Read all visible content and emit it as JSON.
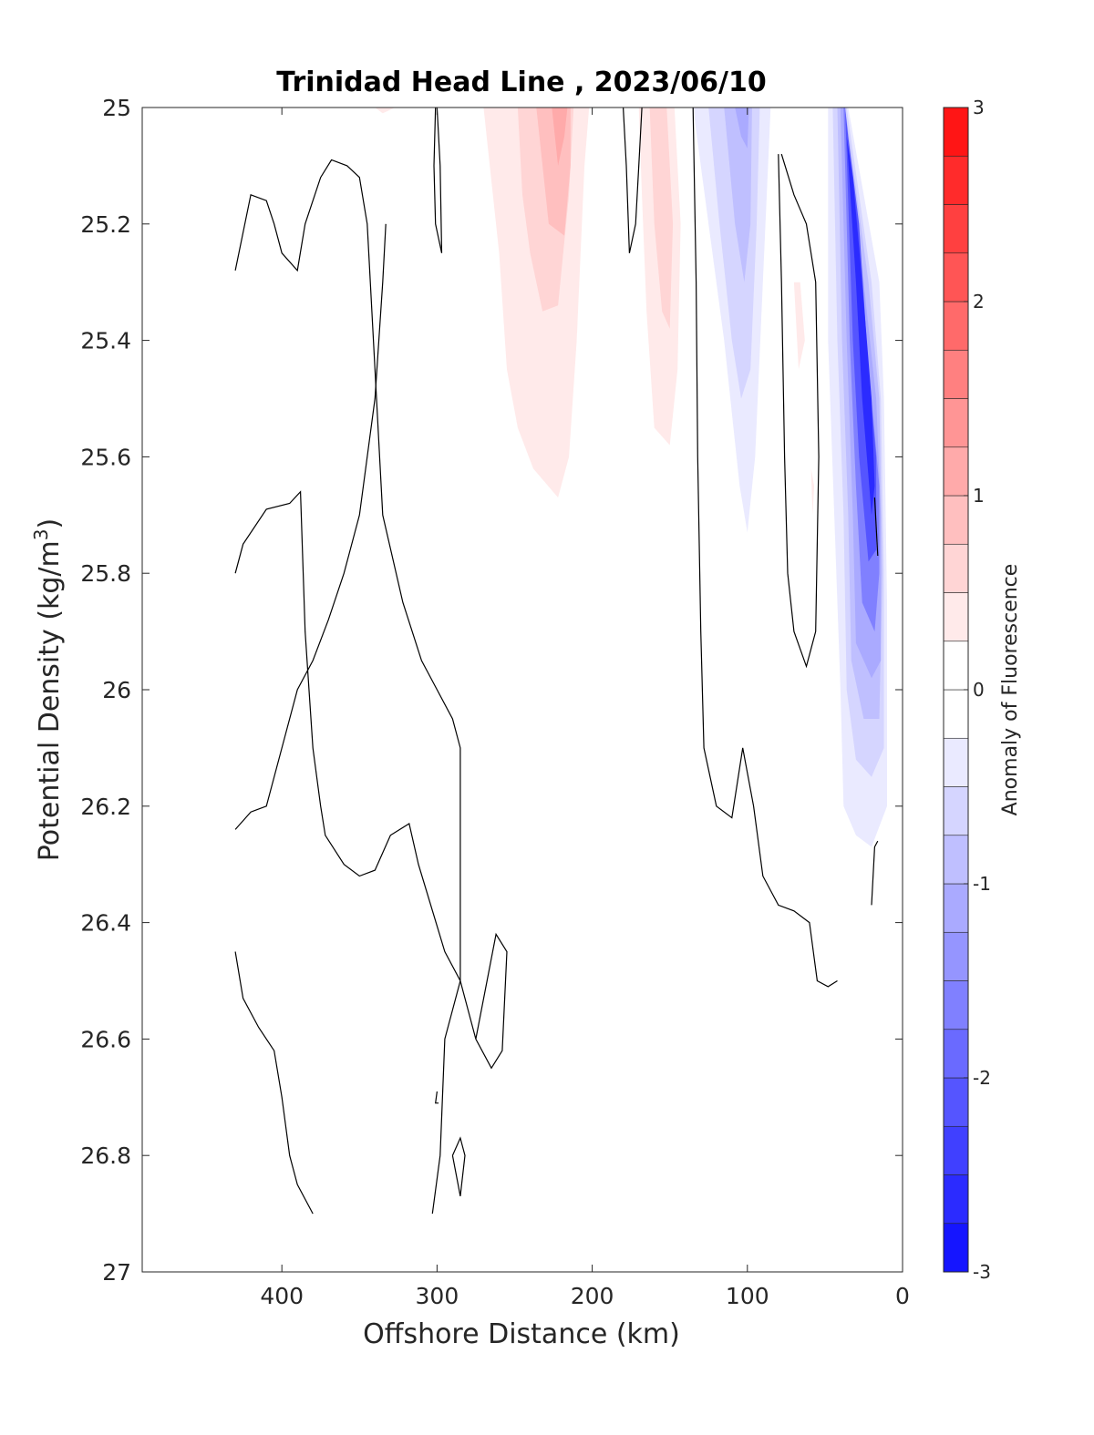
{
  "chart_data": {
    "type": "contour",
    "title": "Trinidad Head Line , 2023/06/10",
    "xlabel": "Offshore Distance (km)",
    "ylabel": "Potential Density (kg/m",
    "ylabel_superscript": "3",
    "ylabel_suffix": ")",
    "colorbar_label": "Anomaly of Fluorescence",
    "xlim": [
      490,
      0
    ],
    "ylim": [
      25,
      27
    ],
    "y_reversed": true,
    "x_reversed": true,
    "xticks": [
      400,
      300,
      200,
      100,
      0
    ],
    "xtick_labels": [
      "400",
      "300",
      "200",
      "100",
      "0"
    ],
    "yticks": [
      25,
      25.2,
      25.4,
      25.6,
      25.8,
      26,
      26.2,
      26.4,
      26.6,
      26.8,
      27
    ],
    "ytick_labels": [
      "25",
      "25.2",
      "25.4",
      "25.6",
      "25.8",
      "26",
      "26.2",
      "26.4",
      "26.6",
      "26.8",
      "27"
    ],
    "colorbar": {
      "limits": [
        -3,
        3
      ],
      "ticks": [
        3,
        2,
        1,
        0,
        -1,
        -2,
        -3
      ],
      "tick_labels": [
        "3",
        "2",
        "1",
        "0",
        "-1",
        "-2",
        "-3"
      ],
      "levels": [
        -3,
        -2.75,
        -2.5,
        -2.25,
        -2,
        -1.75,
        -1.5,
        -1.25,
        -1,
        -0.75,
        -0.5,
        -0.25,
        0,
        0.25,
        0.5,
        0.75,
        1,
        1.25,
        1.5,
        1.75,
        2,
        2.25,
        2.5,
        2.75,
        3
      ],
      "positive_color": "#ff0000",
      "negative_color": "#0000ff",
      "neutral_color": "#ffffff"
    },
    "filled_regions": [
      {
        "level": 0.25,
        "points": [
          [
            270,
            25
          ],
          [
            260,
            25.25
          ],
          [
            255,
            25.45
          ],
          [
            248,
            25.55
          ],
          [
            238,
            25.62
          ],
          [
            222,
            25.67
          ],
          [
            215,
            25.6
          ],
          [
            210,
            25.4
          ],
          [
            205,
            25.1
          ],
          [
            202,
            25
          ]
        ]
      },
      {
        "level": 0.5,
        "points": [
          [
            248,
            25
          ],
          [
            245,
            25.15
          ],
          [
            240,
            25.25
          ],
          [
            232,
            25.35
          ],
          [
            222,
            25.34
          ],
          [
            215,
            25.15
          ],
          [
            212,
            25
          ]
        ]
      },
      {
        "level": 0.75,
        "points": [
          [
            236,
            25
          ],
          [
            232,
            25.1
          ],
          [
            228,
            25.2
          ],
          [
            218,
            25.22
          ],
          [
            214,
            25.1
          ],
          [
            214,
            25
          ]
        ]
      },
      {
        "level": 1.0,
        "points": [
          [
            226,
            25
          ],
          [
            222,
            25.1
          ],
          [
            218,
            25.05
          ],
          [
            216,
            25
          ]
        ]
      },
      {
        "level": 0.25,
        "points": [
          [
            170,
            25
          ],
          [
            168,
            25.15
          ],
          [
            165,
            25.35
          ],
          [
            160,
            25.55
          ],
          [
            150,
            25.58
          ],
          [
            145,
            25.45
          ],
          [
            143,
            25.2
          ],
          [
            147,
            25
          ]
        ]
      },
      {
        "level": 0.5,
        "points": [
          [
            163,
            25
          ],
          [
            160,
            25.2
          ],
          [
            155,
            25.35
          ],
          [
            150,
            25.38
          ],
          [
            148,
            25.2
          ],
          [
            152,
            25
          ]
        ]
      },
      {
        "level": 0.25,
        "points": [
          [
            70,
            25.3
          ],
          [
            67,
            25.45
          ],
          [
            63,
            25.4
          ],
          [
            66,
            25.3
          ]
        ]
      },
      {
        "level": 0.25,
        "points": [
          [
            59,
            25.62
          ],
          [
            58,
            25.7
          ],
          [
            57,
            25.65
          ]
        ]
      },
      {
        "level": 0.25,
        "points": [
          [
            340,
            25
          ],
          [
            335,
            25.01
          ],
          [
            327,
            25
          ]
        ]
      },
      {
        "level": -0.25,
        "points": [
          [
            135,
            25
          ],
          [
            125,
            25.2
          ],
          [
            115,
            25.4
          ],
          [
            105,
            25.65
          ],
          [
            100,
            25.73
          ],
          [
            95,
            25.6
          ],
          [
            90,
            25.3
          ],
          [
            85,
            25
          ]
        ]
      },
      {
        "level": -0.5,
        "points": [
          [
            125,
            25
          ],
          [
            118,
            25.2
          ],
          [
            110,
            25.4
          ],
          [
            104,
            25.5
          ],
          [
            98,
            25.45
          ],
          [
            94,
            25.2
          ],
          [
            92,
            25
          ]
        ]
      },
      {
        "level": -0.75,
        "points": [
          [
            115,
            25
          ],
          [
            108,
            25.2
          ],
          [
            102,
            25.3
          ],
          [
            98,
            25.2
          ],
          [
            97,
            25
          ]
        ]
      },
      {
        "level": -1.0,
        "points": [
          [
            108,
            25
          ],
          [
            104,
            25.05
          ],
          [
            100,
            25.07
          ],
          [
            99,
            25
          ]
        ]
      },
      {
        "level": -0.25,
        "points": [
          [
            48,
            25
          ],
          [
            48,
            25.4
          ],
          [
            44,
            25.7
          ],
          [
            40,
            26
          ],
          [
            38,
            26.2
          ],
          [
            30,
            26.25
          ],
          [
            20,
            26.27
          ],
          [
            10,
            26.2
          ],
          [
            10,
            25.85
          ],
          [
            12,
            25.5
          ],
          [
            15,
            25.3
          ],
          [
            35,
            25
          ]
        ]
      },
      {
        "level": -0.5,
        "points": [
          [
            45,
            25
          ],
          [
            42,
            25.4
          ],
          [
            38,
            25.7
          ],
          [
            36,
            26
          ],
          [
            30,
            26.12
          ],
          [
            20,
            26.15
          ],
          [
            12,
            26.1
          ],
          [
            12,
            25.8
          ],
          [
            14,
            25.5
          ],
          [
            20,
            25.3
          ],
          [
            36,
            25
          ]
        ]
      },
      {
        "level": -0.75,
        "points": [
          [
            42,
            25
          ],
          [
            39,
            25.4
          ],
          [
            35,
            25.7
          ],
          [
            33,
            25.95
          ],
          [
            25,
            26.05
          ],
          [
            15,
            26.05
          ],
          [
            13,
            25.8
          ],
          [
            15,
            25.5
          ],
          [
            22,
            25.3
          ],
          [
            37,
            25
          ]
        ]
      },
      {
        "level": -1.0,
        "points": [
          [
            40,
            25
          ],
          [
            36,
            25.4
          ],
          [
            32,
            25.7
          ],
          [
            30,
            25.92
          ],
          [
            20,
            25.98
          ],
          [
            14,
            25.95
          ],
          [
            14,
            25.7
          ],
          [
            17,
            25.5
          ],
          [
            25,
            25.3
          ],
          [
            38,
            25
          ]
        ]
      },
      {
        "level": -1.5,
        "points": [
          [
            38,
            25
          ],
          [
            34,
            25.4
          ],
          [
            30,
            25.65
          ],
          [
            26,
            25.85
          ],
          [
            18,
            25.9
          ],
          [
            15,
            25.8
          ],
          [
            15,
            25.65
          ],
          [
            20,
            25.5
          ],
          [
            28,
            25.3
          ],
          [
            37,
            25
          ]
        ]
      },
      {
        "level": -2.0,
        "points": [
          [
            37,
            25
          ],
          [
            32,
            25.4
          ],
          [
            28,
            25.6
          ],
          [
            22,
            25.78
          ],
          [
            17,
            25.76
          ],
          [
            17,
            25.6
          ],
          [
            22,
            25.45
          ],
          [
            28,
            25.2
          ],
          [
            35,
            25.05
          ]
        ]
      },
      {
        "level": -2.5,
        "points": [
          [
            36,
            25.05
          ],
          [
            30,
            25.3
          ],
          [
            26,
            25.5
          ],
          [
            20,
            25.7
          ],
          [
            18,
            25.65
          ],
          [
            20,
            25.5
          ],
          [
            26,
            25.3
          ],
          [
            32,
            25.12
          ]
        ]
      }
    ],
    "zero_contours": [
      [
        [
          430,
          25.28
        ],
        [
          420,
          25.15
        ],
        [
          410,
          25.16
        ],
        [
          405,
          25.2
        ],
        [
          400,
          25.25
        ],
        [
          390,
          25.28
        ],
        [
          385,
          25.2
        ],
        [
          375,
          25.12
        ],
        [
          368,
          25.09
        ],
        [
          358,
          25.1
        ],
        [
          350,
          25.12
        ],
        [
          345,
          25.2
        ],
        [
          340,
          25.45
        ],
        [
          335,
          25.7
        ],
        [
          322,
          25.85
        ],
        [
          310,
          25.95
        ],
        [
          300,
          26.0
        ],
        [
          290,
          26.05
        ],
        [
          285,
          26.1
        ],
        [
          285,
          26.5
        ],
        [
          290,
          26.55
        ],
        [
          295,
          26.6
        ],
        [
          298,
          26.8
        ],
        [
          303,
          26.9
        ]
      ],
      [
        [
          430,
          25.8
        ],
        [
          425,
          25.75
        ],
        [
          410,
          25.69
        ],
        [
          395,
          25.68
        ],
        [
          388,
          25.66
        ],
        [
          385,
          25.9
        ],
        [
          380,
          26.1
        ],
        [
          375,
          26.2
        ],
        [
          372,
          26.25
        ],
        [
          360,
          26.3
        ],
        [
          350,
          26.32
        ],
        [
          340,
          26.31
        ],
        [
          330,
          26.25
        ],
        [
          318,
          26.23
        ],
        [
          312,
          26.3
        ],
        [
          295,
          26.45
        ],
        [
          285,
          26.5
        ],
        [
          275,
          26.6
        ],
        [
          265,
          26.65
        ],
        [
          258,
          26.62
        ],
        [
          255,
          26.45
        ],
        [
          262,
          26.42
        ],
        [
          275,
          26.6
        ]
      ],
      [
        [
          430,
          26.24
        ],
        [
          420,
          26.21
        ],
        [
          410,
          26.2
        ],
        [
          400,
          26.1
        ],
        [
          390,
          26.0
        ],
        [
          380,
          25.95
        ],
        [
          370,
          25.88
        ],
        [
          360,
          25.8
        ],
        [
          350,
          25.7
        ],
        [
          340,
          25.5
        ],
        [
          335,
          25.3
        ],
        [
          333,
          25.2
        ]
      ],
      [
        [
          430,
          26.45
        ],
        [
          425,
          26.53
        ],
        [
          415,
          26.58
        ],
        [
          405,
          26.62
        ],
        [
          400,
          26.7
        ],
        [
          395,
          26.8
        ],
        [
          390,
          26.85
        ],
        [
          380,
          26.9
        ]
      ],
      [
        [
          300,
          25.0
        ],
        [
          298,
          25.1
        ],
        [
          297,
          25.25
        ],
        [
          301,
          25.2
        ],
        [
          302,
          25.1
        ],
        [
          301,
          25.0
        ]
      ],
      [
        [
          180,
          25.0
        ],
        [
          178,
          25.1
        ],
        [
          176,
          25.25
        ],
        [
          172,
          25.2
        ],
        [
          170,
          25.1
        ],
        [
          168,
          25.0
        ]
      ],
      [
        [
          135,
          25.0
        ],
        [
          133,
          25.3
        ],
        [
          132,
          25.6
        ],
        [
          130,
          25.9
        ],
        [
          128,
          26.1
        ],
        [
          120,
          26.2
        ],
        [
          110,
          26.22
        ],
        [
          103,
          26.1
        ],
        [
          96,
          26.2
        ],
        [
          90,
          26.32
        ],
        [
          80,
          26.37
        ],
        [
          70,
          26.38
        ],
        [
          60,
          26.4
        ],
        [
          55,
          26.5
        ],
        [
          48,
          26.51
        ],
        [
          42,
          26.5
        ]
      ],
      [
        [
          80,
          25.08
        ],
        [
          78,
          25.3
        ],
        [
          76,
          25.6
        ],
        [
          74,
          25.8
        ],
        [
          70,
          25.9
        ],
        [
          62,
          25.96
        ],
        [
          56,
          25.9
        ],
        [
          54,
          25.6
        ],
        [
          56,
          25.3
        ],
        [
          62,
          25.2
        ],
        [
          70,
          25.15
        ],
        [
          78,
          25.08
        ]
      ],
      [
        [
          18,
          25.67
        ],
        [
          16,
          25.77
        ]
      ],
      [
        [
          20,
          26.37
        ],
        [
          18,
          26.27
        ],
        [
          16,
          26.26
        ]
      ],
      [
        [
          300,
          26.69
        ],
        [
          301,
          26.71
        ],
        [
          299,
          26.71
        ]
      ],
      [
        [
          290,
          26.8
        ],
        [
          285,
          26.77
        ],
        [
          282,
          26.8
        ],
        [
          285,
          26.87
        ],
        [
          290,
          26.8
        ]
      ]
    ]
  }
}
